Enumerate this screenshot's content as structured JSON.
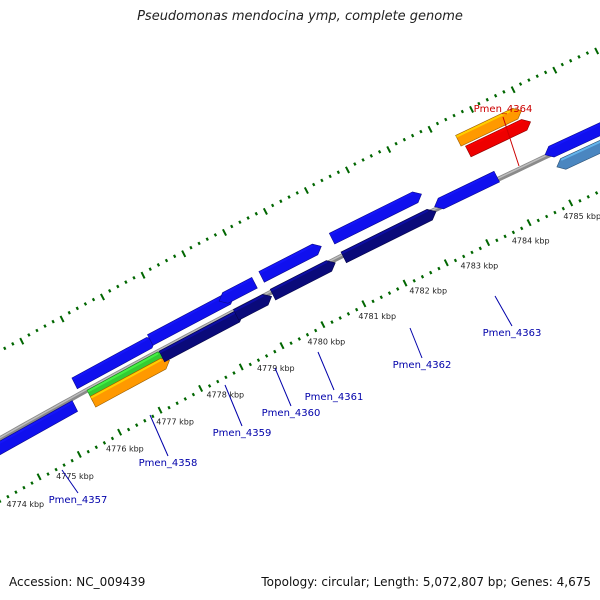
{
  "title": "Pseudomonas mendocina ymp, complete genome",
  "footer": {
    "accession": "Accession: NC_009439",
    "topology": "Topology: circular; Length: 5,072,807 bp; Genes: 4,675"
  },
  "colors": {
    "gene_blue": "#1010ee",
    "gene_navy": "#0a0a7a",
    "gene_green": "#33cc33",
    "gene_orange": "#ff9900",
    "gene_red": "#ee0000",
    "gene_steel": "#4a86c0",
    "tick_green": "#006600",
    "label_blue": "#0000aa",
    "label_red": "#cc0000"
  },
  "kbp_labels": [
    "4774 kbp",
    "4775 kbp",
    "4776 kbp",
    "4777 kbp",
    "4778 kbp",
    "4779 kbp",
    "4780 kbp",
    "4781 kbp",
    "4782 kbp",
    "4783 kbp",
    "4784 kbp",
    "4785 kbp"
  ],
  "gene_labels": [
    {
      "name": "Pmen_4357",
      "color": "label_blue"
    },
    {
      "name": "Pmen_4358",
      "color": "label_blue"
    },
    {
      "name": "Pmen_4359",
      "color": "label_blue"
    },
    {
      "name": "Pmen_4360",
      "color": "label_blue"
    },
    {
      "name": "Pmen_4361",
      "color": "label_blue"
    },
    {
      "name": "Pmen_4362",
      "color": "label_blue"
    },
    {
      "name": "Pmen_4363",
      "color": "label_blue"
    },
    {
      "name": "Pmen_4364",
      "color": "label_red"
    }
  ]
}
